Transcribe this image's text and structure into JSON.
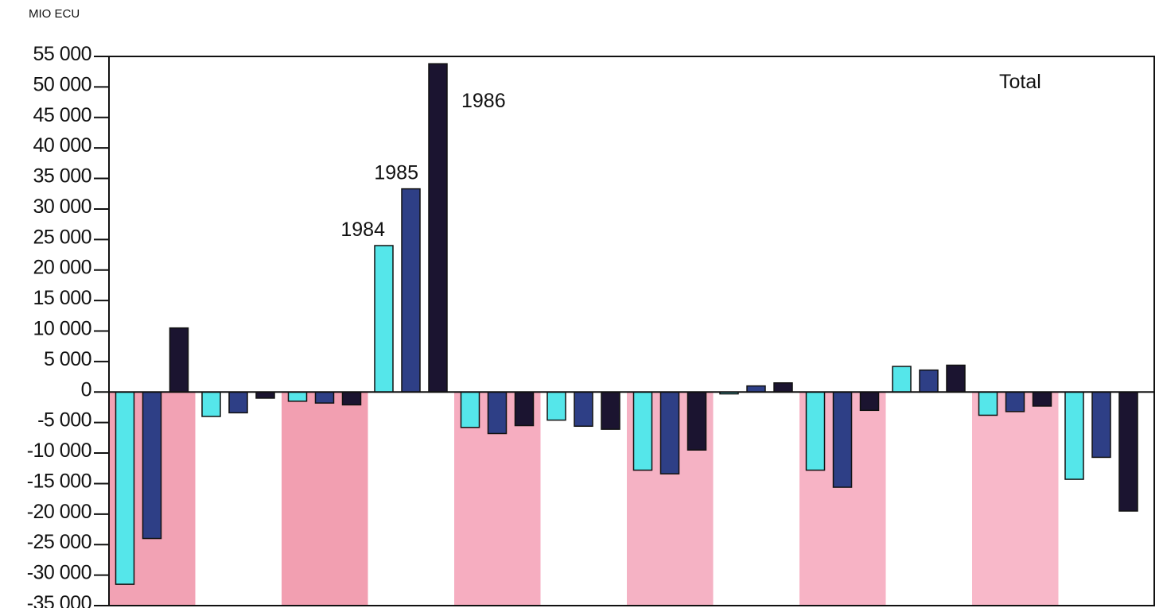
{
  "chart_data": {
    "type": "bar",
    "unit_label": "MIO ECU",
    "title": "Total",
    "ylim": [
      -35000,
      55000
    ],
    "yticks": [
      55000,
      50000,
      45000,
      40000,
      35000,
      30000,
      25000,
      20000,
      15000,
      10000,
      5000,
      0,
      -5000,
      -10000,
      -15000,
      -20000,
      -25000,
      -30000,
      -35000
    ],
    "ytick_labels": [
      "55 000",
      "50 000",
      "45 000",
      "40 000",
      "35 000",
      "30 000",
      "25 000",
      "20 000",
      "15 000",
      "10 000",
      "5 000",
      "0",
      "-5 000",
      "-10 000",
      "-15 000",
      "-20 000",
      "-25 000",
      "-30 000",
      "-35 000"
    ],
    "grid": false,
    "legend": "inline labels on fourth group",
    "group_band_colors": [
      "#f2a2b4",
      "#ffffff",
      "#f29fb1",
      "#ffffff",
      "#f6adc0",
      "#ffffff",
      "#f5b2c4",
      "#ffffff",
      "#f7b3c5",
      "#ffffff",
      "#f8b8c9",
      "#ffffff"
    ],
    "series": [
      {
        "name": "1984",
        "color": "#55e6ea",
        "values": [
          -31500,
          -4000,
          -1500,
          24000,
          -5800,
          -4600,
          -12800,
          -300,
          -12800,
          4200,
          -3800,
          -14300
        ]
      },
      {
        "name": "1985",
        "color": "#2e3f86",
        "values": [
          -24000,
          -3400,
          -1800,
          33300,
          -6800,
          -5600,
          -13400,
          1000,
          -15600,
          3600,
          -3200,
          -10700
        ]
      },
      {
        "name": "1986",
        "color": "#1b1430",
        "values": [
          10500,
          -1000,
          -2100,
          53800,
          -5500,
          -6100,
          -9500,
          1500,
          -3000,
          4400,
          -2300,
          -19500
        ]
      }
    ]
  }
}
